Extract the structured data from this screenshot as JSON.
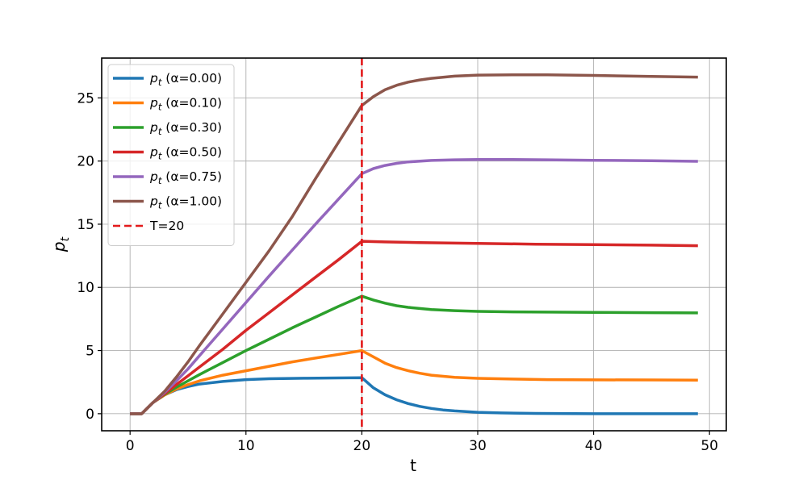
{
  "chart_data": {
    "type": "line",
    "title": "",
    "xlabel": "t",
    "ylabel_base": "p",
    "ylabel_sub": "t",
    "xlim": [
      -2.45,
      51.45
    ],
    "ylim": [
      -1.35,
      28.15
    ],
    "xticks": [
      0,
      10,
      20,
      30,
      40,
      50
    ],
    "yticks": [
      0,
      5,
      10,
      15,
      20,
      25
    ],
    "grid": true,
    "legend_position": "upper-left",
    "vline": {
      "x": 20,
      "label": "T=20",
      "color": "#e31a1c",
      "style": "dashed"
    },
    "series": [
      {
        "name_base": "p",
        "name_sub": "t",
        "name_rest": " (α=0.00)",
        "color": "#1f77b4",
        "x": [
          0,
          1,
          2,
          3,
          4,
          5,
          6,
          8,
          10,
          12,
          15,
          18,
          20,
          21,
          22,
          23,
          24,
          25,
          26,
          27,
          28,
          30,
          32,
          35,
          40,
          45,
          49
        ],
        "y": [
          0,
          0,
          0.9,
          1.5,
          1.9,
          2.15,
          2.35,
          2.55,
          2.7,
          2.77,
          2.81,
          2.83,
          2.85,
          2.05,
          1.5,
          1.1,
          0.8,
          0.58,
          0.42,
          0.3,
          0.22,
          0.11,
          0.06,
          0.02,
          0.0,
          0.0,
          0.0
        ]
      },
      {
        "name_base": "p",
        "name_sub": "t",
        "name_rest": " (α=0.10)",
        "color": "#ff7f0e",
        "x": [
          0,
          1,
          2,
          3,
          4,
          5,
          6,
          8,
          10,
          12,
          14,
          16,
          18,
          20,
          21,
          22,
          23,
          24,
          25,
          26,
          28,
          30,
          33,
          36,
          40,
          45,
          49
        ],
        "y": [
          0,
          0,
          0.9,
          1.5,
          1.95,
          2.3,
          2.6,
          3.05,
          3.4,
          3.75,
          4.1,
          4.4,
          4.7,
          5.0,
          4.5,
          4.0,
          3.65,
          3.4,
          3.2,
          3.05,
          2.88,
          2.8,
          2.74,
          2.7,
          2.68,
          2.67,
          2.66
        ]
      },
      {
        "name_base": "p",
        "name_sub": "t",
        "name_rest": " (α=0.30)",
        "color": "#2ca02c",
        "x": [
          0,
          1,
          2,
          3,
          4,
          5,
          6,
          8,
          10,
          12,
          14,
          16,
          18,
          20,
          21,
          22,
          23,
          24,
          26,
          28,
          30,
          33,
          36,
          40,
          45,
          49
        ],
        "y": [
          0,
          0,
          0.9,
          1.55,
          2.1,
          2.6,
          3.1,
          4.05,
          5.0,
          5.9,
          6.8,
          7.65,
          8.5,
          9.3,
          9.0,
          8.75,
          8.55,
          8.42,
          8.25,
          8.16,
          8.1,
          8.06,
          8.04,
          8.02,
          8.0,
          7.98
        ]
      },
      {
        "name_base": "p",
        "name_sub": "t",
        "name_rest": " (α=0.50)",
        "color": "#d62728",
        "x": [
          0,
          1,
          2,
          3,
          4,
          5,
          6,
          8,
          10,
          12,
          14,
          16,
          18,
          20,
          22,
          25,
          30,
          35,
          40,
          45,
          49
        ],
        "y": [
          0,
          0,
          0.9,
          1.6,
          2.3,
          3.0,
          3.7,
          5.1,
          6.6,
          8.0,
          9.4,
          10.8,
          12.2,
          13.65,
          13.6,
          13.55,
          13.48,
          13.42,
          13.38,
          13.34,
          13.3
        ]
      },
      {
        "name_base": "p",
        "name_sub": "t",
        "name_rest": " (α=0.75)",
        "color": "#9467bd",
        "x": [
          0,
          1,
          2,
          3,
          4,
          5,
          6,
          8,
          10,
          12,
          14,
          16,
          18,
          20,
          21,
          22,
          23,
          24,
          26,
          28,
          30,
          33,
          36,
          40,
          45,
          49
        ],
        "y": [
          0,
          0,
          0.9,
          1.7,
          2.6,
          3.55,
          4.6,
          6.7,
          8.8,
          10.9,
          12.95,
          15.0,
          17.0,
          19.0,
          19.4,
          19.65,
          19.82,
          19.93,
          20.05,
          20.1,
          20.12,
          20.12,
          20.1,
          20.06,
          20.02,
          19.98
        ]
      },
      {
        "name_base": "p",
        "name_sub": "t",
        "name_rest": " (α=1.00)",
        "color": "#8c564b",
        "x": [
          0,
          1,
          2,
          3,
          4,
          5,
          6,
          8,
          10,
          12,
          14,
          16,
          18,
          20,
          21,
          22,
          23,
          24,
          25,
          26,
          28,
          30,
          33,
          36,
          40,
          45,
          49
        ],
        "y": [
          0,
          0,
          0.9,
          1.8,
          2.9,
          4.1,
          5.4,
          7.9,
          10.4,
          12.9,
          15.6,
          18.6,
          21.5,
          24.4,
          25.1,
          25.65,
          26.0,
          26.25,
          26.42,
          26.55,
          26.72,
          26.8,
          26.83,
          26.82,
          26.78,
          26.7,
          26.64
        ]
      }
    ]
  }
}
